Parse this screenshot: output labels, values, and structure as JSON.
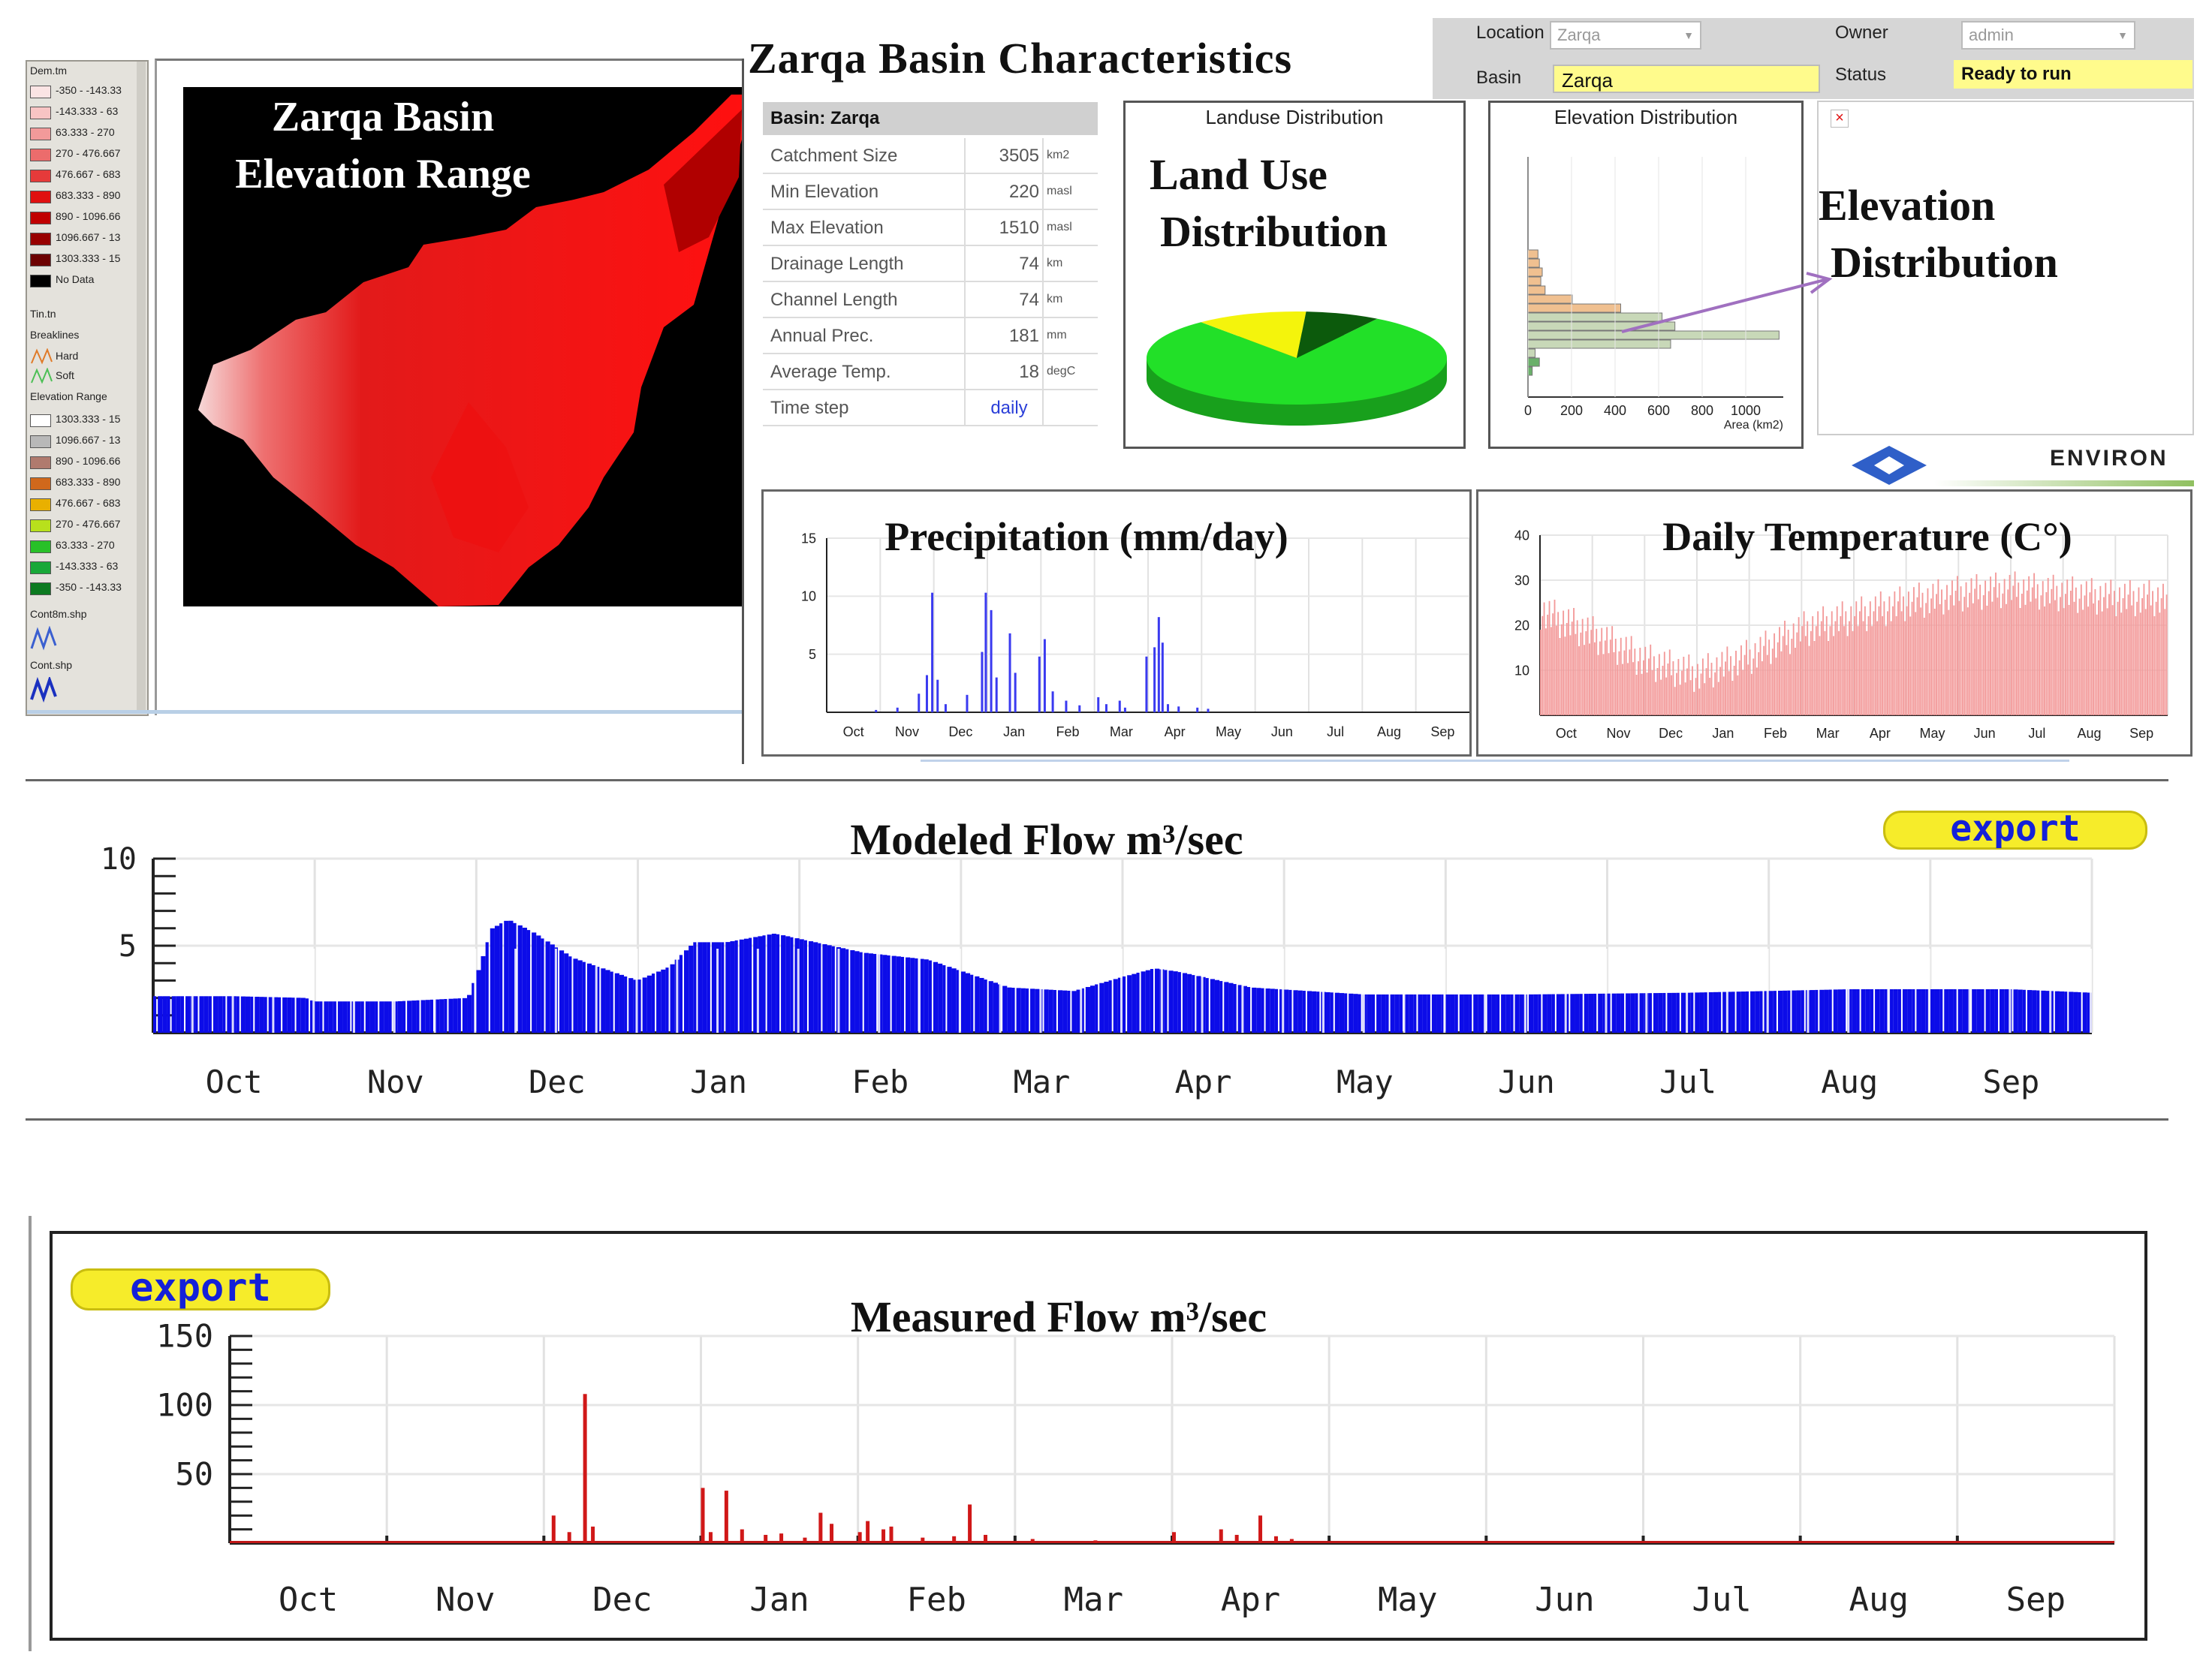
{
  "page": {
    "main_title": "Zarqa Basin Characteristics"
  },
  "legend": {
    "layer1_title": "Dem.tm",
    "layer1_items": [
      {
        "label": "-350 - -143.33",
        "color": "#fbe4e4"
      },
      {
        "label": "-143.333 - 63",
        "color": "#f8c4c4"
      },
      {
        "label": "63.333 - 270",
        "color": "#f29a9a"
      },
      {
        "label": "270 - 476.667",
        "color": "#ec6c6c"
      },
      {
        "label": "476.667 - 683",
        "color": "#e63a3a"
      },
      {
        "label": "683.333 - 890",
        "color": "#e01010"
      },
      {
        "label": "890 - 1096.66",
        "color": "#c00000"
      },
      {
        "label": "1096.667 - 13",
        "color": "#980000"
      },
      {
        "label": "1303.333 - 15",
        "color": "#6c0000"
      },
      {
        "label": "No Data",
        "color": "#000000"
      }
    ],
    "layer2_title": "Tin.tn",
    "layer2_sub": "Breaklines",
    "breaklines": [
      {
        "label": "Hard",
        "color": "#e07a28"
      },
      {
        "label": "Soft",
        "color": "#4cbf55"
      }
    ],
    "elev_title": "Elevation Range",
    "elev_items": [
      {
        "label": "1303.333 - 15",
        "color": "#ffffff"
      },
      {
        "label": "1096.667 - 13",
        "color": "#b8b8b8"
      },
      {
        "label": "890 - 1096.66",
        "color": "#b07a6e"
      },
      {
        "label": "683.333 - 890",
        "color": "#d0681c"
      },
      {
        "label": "476.667 - 683",
        "color": "#e9b000"
      },
      {
        "label": "270 - 476.667",
        "color": "#b8e01c"
      },
      {
        "label": "63.333 - 270",
        "color": "#28c028"
      },
      {
        "label": "-143.333 - 63",
        "color": "#18a838"
      },
      {
        "label": "-350 - -143.33",
        "color": "#0c7a20"
      }
    ],
    "layer3_title": "Cont8m.shp",
    "layer4_title": "Cont.shp"
  },
  "map": {
    "title_line1": "Zarqa Basin",
    "title_line2": "Elevation Range"
  },
  "basin_table": {
    "header": "Basin: Zarqa",
    "rows": [
      {
        "label": "Catchment Size",
        "value": "3505",
        "unit": "km2"
      },
      {
        "label": "Min Elevation",
        "value": "220",
        "unit": "masl"
      },
      {
        "label": "Max Elevation",
        "value": "1510",
        "unit": "masl"
      },
      {
        "label": "Drainage Length",
        "value": "74",
        "unit": "km"
      },
      {
        "label": "Channel Length",
        "value": "74",
        "unit": "km"
      },
      {
        "label": "Annual Prec.",
        "value": "181",
        "unit": "mm"
      },
      {
        "label": "Average Temp.",
        "value": "18",
        "unit": "degC"
      },
      {
        "label": "Time step",
        "value": "daily",
        "unit": ""
      }
    ]
  },
  "landuse": {
    "caption": "Landuse Distribution",
    "overlay_line1": "Land Use",
    "overlay_line2": "Distribution",
    "slices": [
      {
        "name": "green",
        "percent": 80,
        "color": "#22e028"
      },
      {
        "name": "yellow",
        "percent": 12,
        "color": "#f4f40c"
      },
      {
        "name": "dark-green",
        "percent": 8,
        "color": "#0c5a0c"
      }
    ]
  },
  "elevation_dist": {
    "caption": "Elevation Distribution",
    "overlay_line1": "Elevation",
    "overlay_line2": "Distribution",
    "x_ticks": [
      "0",
      "200",
      "400",
      "600",
      "800",
      "1000"
    ],
    "x_label": "Area (km2)"
  },
  "form": {
    "location_label": "Location",
    "location_value": "Zarqa",
    "owner_label": "Owner",
    "owner_value": "admin",
    "basin_label": "Basin",
    "basin_value": "Zarqa",
    "status_label": "Status",
    "status_value": "Ready to run",
    "logo_text": "ENVIRON"
  },
  "months": [
    "Oct",
    "Nov",
    "Dec",
    "Jan",
    "Feb",
    "Mar",
    "Apr",
    "May",
    "Jun",
    "Jul",
    "Aug",
    "Sep"
  ],
  "export_label": "export",
  "chart_data": [
    {
      "type": "bar",
      "title": "Precipitation (mm/day)",
      "ylim": [
        0,
        15
      ],
      "yticks": [
        "5",
        "10",
        "15"
      ],
      "categories": [
        "Oct",
        "Nov",
        "Dec",
        "Jan",
        "Feb",
        "Mar",
        "Apr",
        "May",
        "Jun",
        "Jul",
        "Aug",
        "Sep"
      ],
      "spikes": [
        [
          0.9,
          0.2
        ],
        [
          1.3,
          0.4
        ],
        [
          1.7,
          1.6
        ],
        [
          1.85,
          3.2
        ],
        [
          1.95,
          10.3
        ],
        [
          2.05,
          2.8
        ],
        [
          2.2,
          0.7
        ],
        [
          2.6,
          1.5
        ],
        [
          2.88,
          5.2
        ],
        [
          2.95,
          10.3
        ],
        [
          3.05,
          8.8
        ],
        [
          3.15,
          3.0
        ],
        [
          3.4,
          6.8
        ],
        [
          3.5,
          3.4
        ],
        [
          3.95,
          4.8
        ],
        [
          4.05,
          6.3
        ],
        [
          4.2,
          1.8
        ],
        [
          4.45,
          1.0
        ],
        [
          4.7,
          0.6
        ],
        [
          5.05,
          1.3
        ],
        [
          5.2,
          0.7
        ],
        [
          5.45,
          1.0
        ],
        [
          5.55,
          0.4
        ],
        [
          5.95,
          4.8
        ],
        [
          6.1,
          5.6
        ],
        [
          6.18,
          8.2
        ],
        [
          6.25,
          6.0
        ],
        [
          6.35,
          0.7
        ],
        [
          6.55,
          0.5
        ],
        [
          6.9,
          0.4
        ],
        [
          7.1,
          0.3
        ]
      ]
    },
    {
      "type": "bar",
      "title": "Daily Temperature (C°)",
      "ylim": [
        0,
        40
      ],
      "yticks": [
        "10",
        "20",
        "30",
        "40"
      ],
      "categories": [
        "Oct",
        "Nov",
        "Dec",
        "Jan",
        "Feb",
        "Mar",
        "Apr",
        "May",
        "Jun",
        "Jul",
        "Aug",
        "Sep"
      ],
      "monthly_means": [
        23,
        18,
        12,
        9,
        13,
        19,
        22,
        25,
        27,
        28,
        27,
        26
      ]
    },
    {
      "type": "bar",
      "title": "Modeled Flow m³/sec",
      "ylim": [
        0,
        10
      ],
      "yticks": [
        "5",
        "10"
      ],
      "categories": [
        "Oct",
        "Nov",
        "Dec",
        "Jan",
        "Feb",
        "Mar",
        "Apr",
        "May",
        "Jun",
        "Jul",
        "Aug",
        "Sep"
      ],
      "x": [
        0,
        0.5,
        0.95,
        1.0,
        1.5,
        1.95,
        2.0,
        2.1,
        2.2,
        2.35,
        2.6,
        3.0,
        3.2,
        3.35,
        3.55,
        3.85,
        4.1,
        4.4,
        4.8,
        5.3,
        5.7,
        6.0,
        6.2,
        6.35,
        6.8,
        7.5,
        8.5,
        9.5,
        10.5,
        11.5,
        12.0
      ],
      "values": [
        2.1,
        2.1,
        2.0,
        1.8,
        1.8,
        2.0,
        3.2,
        6.0,
        6.5,
        5.8,
        4.3,
        3.0,
        3.8,
        5.2,
        5.2,
        5.7,
        5.2,
        4.6,
        4.2,
        2.6,
        2.4,
        3.2,
        3.7,
        3.5,
        2.6,
        2.2,
        2.2,
        2.3,
        2.5,
        2.5,
        2.3
      ]
    },
    {
      "type": "bar",
      "title": "Measured Flow m³/sec",
      "ylim": [
        0,
        150
      ],
      "yticks": [
        "50",
        "100",
        "150"
      ],
      "categories": [
        "Oct",
        "Nov",
        "Dec",
        "Jan",
        "Feb",
        "Mar",
        "Apr",
        "May",
        "Jun",
        "Jul",
        "Aug",
        "Sep"
      ],
      "spikes": [
        [
          2.05,
          20
        ],
        [
          2.15,
          8
        ],
        [
          2.25,
          108
        ],
        [
          2.3,
          12
        ],
        [
          3.0,
          40
        ],
        [
          3.05,
          8
        ],
        [
          3.15,
          38
        ],
        [
          3.25,
          10
        ],
        [
          3.4,
          6
        ],
        [
          3.5,
          7
        ],
        [
          3.65,
          4
        ],
        [
          3.75,
          22
        ],
        [
          3.82,
          14
        ],
        [
          4.0,
          8
        ],
        [
          4.05,
          16
        ],
        [
          4.15,
          10
        ],
        [
          4.2,
          12
        ],
        [
          4.4,
          4
        ],
        [
          4.6,
          5
        ],
        [
          4.7,
          28
        ],
        [
          4.8,
          6
        ],
        [
          5.1,
          3
        ],
        [
          5.5,
          2
        ],
        [
          6.0,
          8
        ],
        [
          6.3,
          10
        ],
        [
          6.4,
          6
        ],
        [
          6.55,
          20
        ],
        [
          6.65,
          5
        ],
        [
          6.75,
          3
        ]
      ]
    }
  ]
}
